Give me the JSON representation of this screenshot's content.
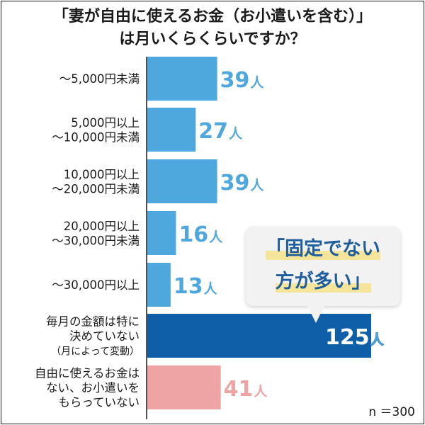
{
  "title": {
    "line1": "「妻が自由に使えるお金（お小遣いを含む）」",
    "line2": "は月いくらくらいですか？"
  },
  "callout": {
    "line1": "「固定でない",
    "line2": "方が多い」"
  },
  "note": "n ＝300",
  "colors": {
    "bar_default": "#4ea8de",
    "bar_highlight": "#0f5fa8",
    "bar_other": "#eea4a4",
    "text_dark": "#1a1a1a",
    "value_blue": "#4ea8de",
    "value_pink": "#eea4a4"
  },
  "chart_data": {
    "type": "bar",
    "orientation": "horizontal",
    "title": "「妻が自由に使えるお金（お小遣いを含む）」は月いくらくらいですか？",
    "unit": "人",
    "xlim": [
      0,
      125
    ],
    "grid": false,
    "categories": [
      [
        "～5,000円未満"
      ],
      [
        "5,000円以上",
        "～10,000円未満"
      ],
      [
        "10,000円以上",
        "～20,000円未満"
      ],
      [
        "20,000円以上",
        "～30,000円未満"
      ],
      [
        "～30,000円以上"
      ],
      [
        "毎月の金額は特に",
        "決めていない",
        "（月によって変動）"
      ],
      [
        "自由に使えるお金は",
        "ない、お小遣いを",
        "もらっていない"
      ]
    ],
    "values": [
      39,
      27,
      39,
      16,
      13,
      125,
      41
    ],
    "value_labels": [
      "39",
      "27",
      "39",
      "16",
      "13",
      "125",
      "41"
    ],
    "bar_styles": [
      "default",
      "default",
      "default",
      "default",
      "default",
      "highlight",
      "other"
    ]
  }
}
